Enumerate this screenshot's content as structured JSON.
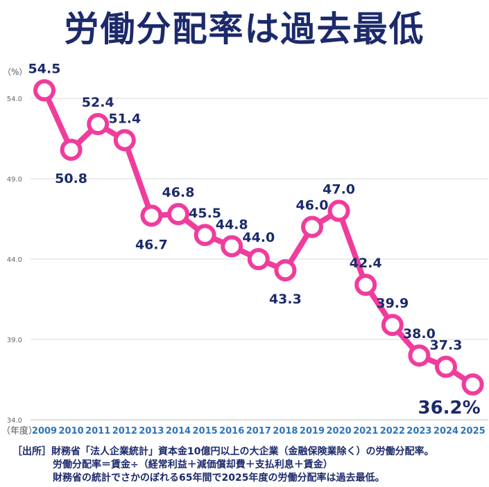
{
  "title": "労働分配率は過去最低",
  "chart_data": {
    "type": "line",
    "title": "労働分配率は過去最低",
    "unit_label": "（%）",
    "x_axis_label": "（年度）",
    "categories": [
      "2009",
      "2010",
      "2011",
      "2012",
      "2013",
      "2014",
      "2015",
      "2016",
      "2017",
      "2018",
      "2019",
      "2020",
      "2021",
      "2022",
      "2023",
      "2024",
      "2025"
    ],
    "values": [
      54.5,
      50.8,
      52.4,
      51.4,
      46.7,
      46.8,
      45.5,
      44.8,
      44.0,
      43.3,
      46.0,
      47.0,
      42.4,
      39.9,
      38.0,
      37.3,
      36.2
    ],
    "value_labels": [
      "54.5",
      "50.8",
      "52.4",
      "51.4",
      "46.7",
      "46.8",
      "45.5",
      "44.8",
      "44.0",
      "43.3",
      "46.0",
      "47.0",
      "42.4",
      "39.9",
      "38.0",
      "37.3",
      "36.2%"
    ],
    "y_ticks": [
      "34.0",
      "39.0",
      "44.0",
      "49.0",
      "54.0"
    ],
    "ylim": [
      34.0,
      55.0
    ],
    "grid": true,
    "line_color": "#f03c9c",
    "marker_fill": "#ffffff",
    "label_color": "#1c2a6b",
    "tick_label_color": "#2e75b6"
  },
  "notes": {
    "line1": "［出所］財務省「法人企業統計」資本金10億円以上の大企業（金融保険業除く）の労働分配率。",
    "line2": "労働分配率＝賃金÷（経常利益＋減価償却費＋支払利息＋賃金）",
    "line3": "財務省の統計でさかのぼれる65年間で2025年度の労働分配率は過去最低。"
  }
}
